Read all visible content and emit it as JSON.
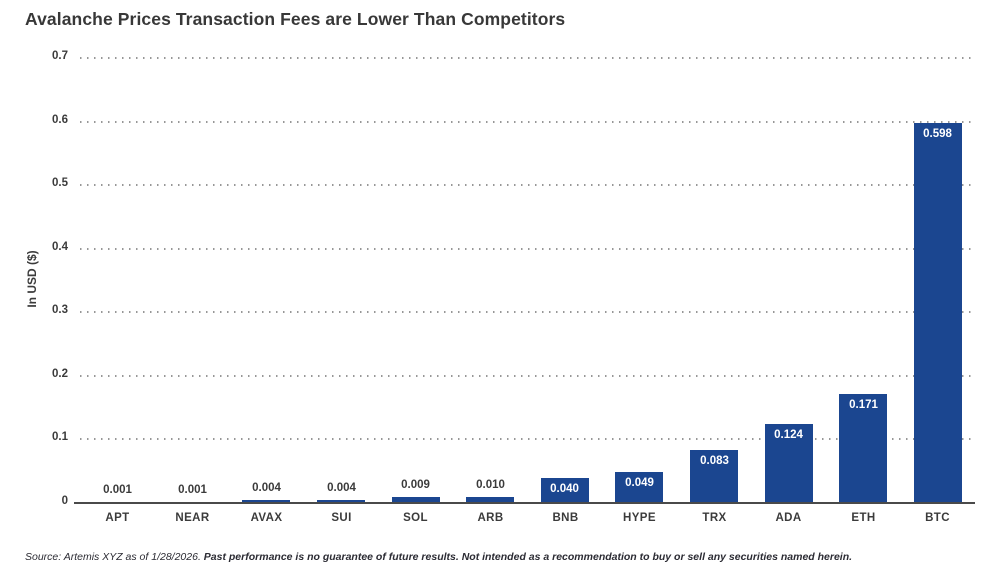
{
  "title": "Avalanche Prices Transaction Fees are Lower Than Competitors",
  "chart_data": {
    "type": "bar",
    "title": "Avalanche Prices Transaction Fees are Lower Than Competitors",
    "categories": [
      "APT",
      "NEAR",
      "AVAX",
      "SUI",
      "SOL",
      "ARB",
      "BNB",
      "HYPE",
      "TRX",
      "ADA",
      "ETH",
      "BTC"
    ],
    "values": [
      0.001,
      0.001,
      0.004,
      0.004,
      0.009,
      0.01,
      0.04,
      0.049,
      0.083,
      0.124,
      0.171,
      0.598
    ],
    "value_labels": [
      "0.001",
      "0.001",
      "0.004",
      "0.004",
      "0.009",
      "0.010",
      "0.040",
      "0.049",
      "0.083",
      "0.124",
      "0.171",
      "0.598"
    ],
    "xlabel": "",
    "ylabel": "In USD ($)",
    "ylim": [
      0,
      0.7
    ],
    "yticks": [
      "0",
      "0.1",
      "0.2",
      "0.3",
      "0.4",
      "0.5",
      "0.6",
      "0.7"
    ],
    "grid": "horizontal-dotted",
    "legend": "none",
    "bar_color": "#1b4690",
    "inside_label_color": "#ffffff",
    "outside_label_color": "#3b3b3b",
    "inside_label_threshold": 0.04
  },
  "footer": {
    "source": "Source: Artemis XYZ as of 1/28/2026. ",
    "disclaimer": "Past performance is no guarantee of future results. Not intended as a recommendation to buy or sell any securities named herein."
  }
}
